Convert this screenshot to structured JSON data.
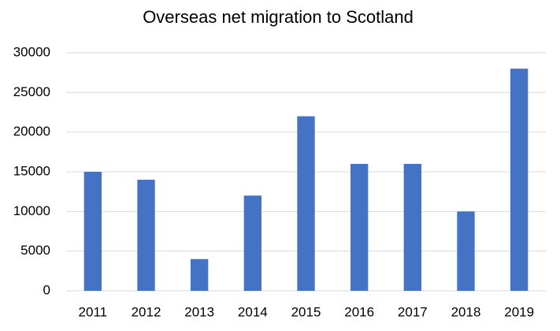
{
  "chart_data": {
    "type": "bar",
    "title": "Overseas net migration to Scotland",
    "categories": [
      "2011",
      "2012",
      "2013",
      "2014",
      "2015",
      "2016",
      "2017",
      "2018",
      "2019"
    ],
    "values": [
      15000,
      14000,
      4000,
      12000,
      22000,
      16000,
      16000,
      10000,
      28000
    ],
    "color": "#4472c4",
    "ylim": [
      0,
      30000
    ],
    "yticks": [
      0,
      5000,
      10000,
      15000,
      20000,
      25000,
      30000
    ],
    "grid": true
  }
}
